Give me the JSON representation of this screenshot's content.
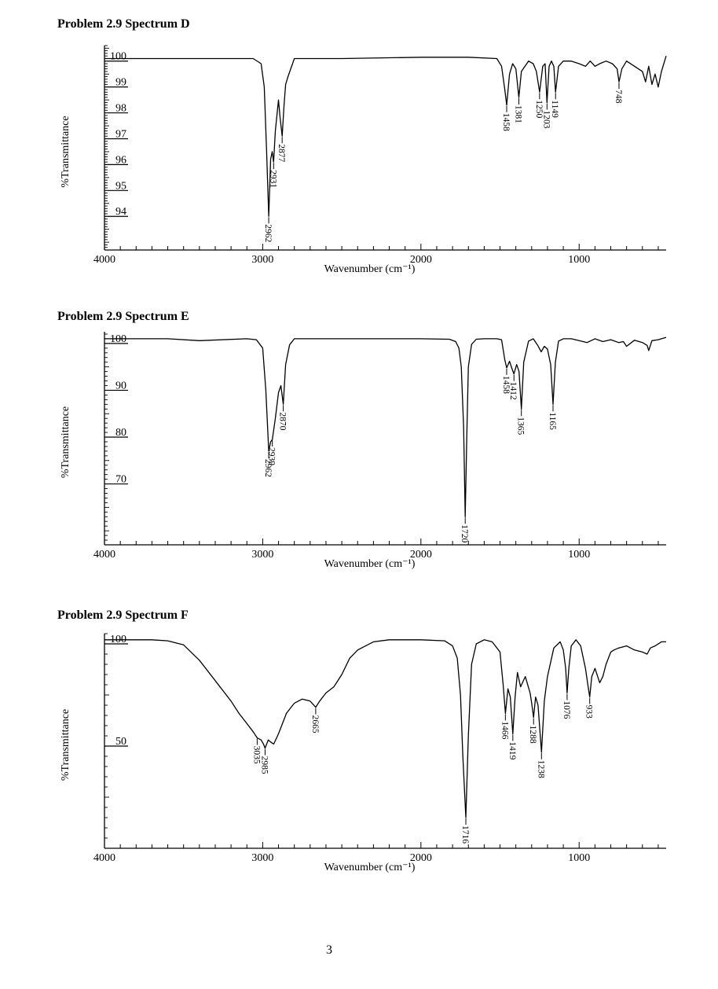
{
  "page_number": "3",
  "chart_data": [
    {
      "type": "line",
      "title": "Problem 2.9 Spectrum D",
      "xlabel": "Wavenumber (cm⁻¹)",
      "ylabel": "%Transmittance",
      "xlim": [
        4000,
        450
      ],
      "ylim": [
        92.7,
        100.6
      ],
      "x_ticks": [
        4000,
        3000,
        2000,
        1000
      ],
      "y_ticks": [
        100,
        99,
        98,
        97,
        96,
        95,
        94
      ],
      "series": [
        {
          "x": [
            4000,
            3600,
            3200,
            3060,
            3010,
            2990,
            2975,
            2962,
            2950,
            2940,
            2931,
            2920,
            2900,
            2890,
            2877,
            2865,
            2855,
            2840,
            2800,
            2500,
            1990,
            1700,
            1520,
            1490,
            1470,
            1458,
            1440,
            1420,
            1400,
            1381,
            1365,
            1320,
            1290,
            1270,
            1250,
            1230,
            1215,
            1203,
            1190,
            1175,
            1160,
            1149,
            1130,
            1100,
            1050,
            1000,
            960,
            930,
            900,
            870,
            830,
            790,
            760,
            748,
            730,
            700,
            650,
            600,
            580,
            560,
            540,
            520,
            500,
            480,
            450
          ],
          "y": [
            100.1,
            100.1,
            100.1,
            100.1,
            99.9,
            99.0,
            96.5,
            94.0,
            96.2,
            96.5,
            96.1,
            97.3,
            98.5,
            97.8,
            97.1,
            98.3,
            99.1,
            99.4,
            100.1,
            100.1,
            100.15,
            100.15,
            100.1,
            99.8,
            98.9,
            98.3,
            99.5,
            99.9,
            99.7,
            98.6,
            99.6,
            100.0,
            99.9,
            99.6,
            98.8,
            99.8,
            99.9,
            98.4,
            99.8,
            100.0,
            99.8,
            98.8,
            99.8,
            100.0,
            100.0,
            99.9,
            99.8,
            100.0,
            99.8,
            99.9,
            100.0,
            99.9,
            99.7,
            99.2,
            99.7,
            100.0,
            99.8,
            99.6,
            99.2,
            99.8,
            99.1,
            99.5,
            99.0,
            99.6,
            100.2
          ]
        }
      ],
      "peak_labels": [
        {
          "x": 2962,
          "y": 94.0,
          "text": "2962"
        },
        {
          "x": 2931,
          "y": 96.1,
          "text": "2931"
        },
        {
          "x": 2877,
          "y": 97.1,
          "text": "2877"
        },
        {
          "x": 1458,
          "y": 98.3,
          "text": "1458"
        },
        {
          "x": 1381,
          "y": 98.6,
          "text": "1381"
        },
        {
          "x": 1250,
          "y": 98.8,
          "text": "1250"
        },
        {
          "x": 1203,
          "y": 98.4,
          "text": "1203"
        },
        {
          "x": 1149,
          "y": 98.8,
          "text": "1149"
        },
        {
          "x": 748,
          "y": 99.2,
          "text": "748"
        }
      ]
    },
    {
      "type": "line",
      "title": "Problem 2.9 Spectrum E",
      "xlabel": "Wavenumber (cm⁻¹)",
      "ylabel": "%Transmittance",
      "xlim": [
        4000,
        450
      ],
      "ylim": [
        57,
        102.5
      ],
      "x_ticks": [
        4000,
        3000,
        2000,
        1000
      ],
      "y_ticks": [
        100,
        90,
        80,
        70
      ],
      "series": [
        {
          "x": [
            4000,
            3600,
            3400,
            3100,
            3040,
            3000,
            2980,
            2962,
            2950,
            2939,
            2920,
            2900,
            2885,
            2870,
            2855,
            2830,
            2800,
            2500,
            2000,
            1820,
            1780,
            1760,
            1745,
            1730,
            1720,
            1710,
            1700,
            1680,
            1650,
            1600,
            1520,
            1490,
            1470,
            1458,
            1440,
            1425,
            1412,
            1395,
            1380,
            1365,
            1350,
            1320,
            1290,
            1260,
            1240,
            1220,
            1200,
            1180,
            1165,
            1150,
            1130,
            1100,
            1050,
            1000,
            950,
            900,
            850,
            800,
            750,
            720,
            700,
            650,
            600,
            570,
            560,
            540,
            500,
            450
          ],
          "y": [
            101,
            101,
            100.6,
            101,
            100.8,
            99,
            90,
            77,
            79,
            79.5,
            84,
            89.5,
            91,
            87,
            95.5,
            99.7,
            101,
            101,
            101,
            100.9,
            100.4,
            99,
            95,
            82,
            63,
            80,
            95,
            99.8,
            100.9,
            101,
            101,
            100.8,
            96.5,
            94.8,
            96.2,
            94.7,
            93.5,
            95.5,
            94,
            86,
            96,
            100.5,
            101,
            99.5,
            98.2,
            99.4,
            98.8,
            95.5,
            87,
            96,
            100.5,
            101,
            101,
            100.6,
            100.2,
            101,
            100.4,
            100.8,
            100.2,
            100.4,
            99.4,
            100.7,
            100.2,
            99.6,
            98.5,
            100.6,
            100.8,
            101.3
          ]
        }
      ],
      "peak_labels": [
        {
          "x": 2962,
          "y": 77,
          "text": "2962"
        },
        {
          "x": 2939,
          "y": 79.5,
          "text": "2939"
        },
        {
          "x": 2870,
          "y": 87,
          "text": "2870"
        },
        {
          "x": 1720,
          "y": 63,
          "text": "1720"
        },
        {
          "x": 1458,
          "y": 94.8,
          "text": "1458"
        },
        {
          "x": 1412,
          "y": 93.5,
          "text": "1412"
        },
        {
          "x": 1365,
          "y": 86,
          "text": "1365"
        },
        {
          "x": 1165,
          "y": 87,
          "text": "1165"
        }
      ]
    },
    {
      "type": "line",
      "title": "Problem 2.9 Spectrum F",
      "xlabel": "Wavenumber (cm⁻¹)",
      "ylabel": "%Transmittance",
      "xlim": [
        4000,
        450
      ],
      "ylim": [
        0,
        105
      ],
      "x_ticks": [
        4000,
        3000,
        2000,
        1000
      ],
      "y_ticks": [
        100,
        50
      ],
      "series": [
        {
          "x": [
            4000,
            3700,
            3600,
            3500,
            3400,
            3300,
            3200,
            3150,
            3100,
            3060,
            3035,
            3010,
            2995,
            2985,
            2965,
            2950,
            2930,
            2900,
            2850,
            2800,
            2750,
            2700,
            2665,
            2640,
            2600,
            2550,
            2500,
            2450,
            2400,
            2350,
            2300,
            2200,
            2000,
            1850,
            1800,
            1770,
            1750,
            1735,
            1716,
            1700,
            1680,
            1650,
            1600,
            1550,
            1500,
            1480,
            1466,
            1450,
            1435,
            1419,
            1405,
            1390,
            1370,
            1340,
            1310,
            1300,
            1288,
            1275,
            1260,
            1238,
            1220,
            1200,
            1160,
            1120,
            1100,
            1085,
            1076,
            1065,
            1050,
            1020,
            990,
            960,
            945,
            933,
            920,
            900,
            870,
            850,
            830,
            800,
            780,
            750,
            700,
            650,
            600,
            570,
            550,
            520,
            480,
            450
          ],
          "y": [
            102,
            102,
            101.5,
            99.5,
            92,
            82,
            72,
            66,
            61,
            57,
            54,
            53,
            51,
            49,
            53,
            52,
            51,
            56,
            66,
            71,
            73,
            72,
            69,
            72,
            76,
            79,
            85,
            93,
            97,
            99,
            101,
            102,
            102,
            101.5,
            99,
            93,
            75,
            45,
            15,
            55,
            90,
            100,
            102,
            101,
            96,
            80,
            66,
            78,
            74,
            56,
            74,
            86,
            79,
            84,
            76,
            71,
            64,
            74,
            70,
            47,
            72,
            84,
            98,
            101,
            97,
            88,
            76,
            88,
            99,
            102,
            99,
            88,
            80,
            74,
            84,
            88,
            81,
            84,
            90,
            96,
            97,
            98,
            99,
            97,
            96,
            95,
            98,
            99,
            101,
            101
          ]
        }
      ],
      "peak_labels": [
        {
          "x": 3035,
          "y": 54,
          "text": "3035"
        },
        {
          "x": 2985,
          "y": 49,
          "text": "2985"
        },
        {
          "x": 2665,
          "y": 69,
          "text": "2665"
        },
        {
          "x": 1716,
          "y": 15,
          "text": "1716"
        },
        {
          "x": 1466,
          "y": 66,
          "text": "1466"
        },
        {
          "x": 1419,
          "y": 56,
          "text": "1419"
        },
        {
          "x": 1288,
          "y": 64,
          "text": "1288"
        },
        {
          "x": 1238,
          "y": 47,
          "text": "1238"
        },
        {
          "x": 1076,
          "y": 76,
          "text": "1076"
        },
        {
          "x": 933,
          "y": 74,
          "text": "933"
        }
      ]
    }
  ]
}
